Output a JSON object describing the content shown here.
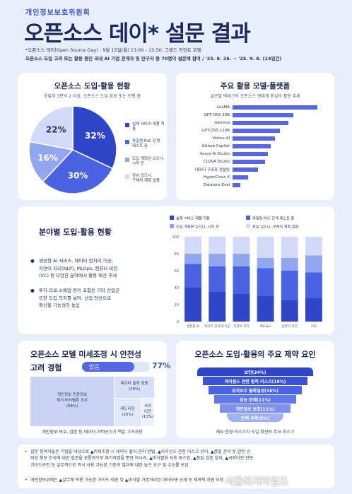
{
  "header": {
    "org": "개인정보보호위원회",
    "title": "오픈소스 데이* 설문 결과",
    "note": "*오픈소스 데이(Open Source Day) : 9월 15일(월) 13:00 - 15:30, 그랜드 하얏트 호텔",
    "summary": "오픈소스 도입 고려 또는 활용 중인 국내 AI 기업 관계자 및 연구자 등 70명이 설문에 참여 / '25. 8. 26. ~ '25. 9. 8. (14일간)"
  },
  "adoption": {
    "title": "오픈소스 도입·활용 현황",
    "subtitle": "응답자 3분의 2 이상, 오픈소스 도입 완료 또는 진행 중",
    "chart_data": {
      "type": "pie",
      "slices": [
        {
          "label": "실제 서비스·제품 적용",
          "value": 32,
          "color": "#2f46c9"
        },
        {
          "label": "파일럿·PoC 단계 테스트 중",
          "value": 30,
          "color": "#4a63e3"
        },
        {
          "label": "도입 계획은 있으나, 시작 전",
          "value": 16,
          "color": "#93a6f0"
        },
        {
          "label": "관심 있으나, 구체적 계획 없음",
          "value": 22,
          "color": "#d2daf8"
        }
      ],
      "value_labels": [
        "32%",
        "30%",
        "16%",
        "22%"
      ]
    },
    "legend": [
      {
        "line1": "실제 서비스·제품 적용",
        "line2": ""
      },
      {
        "line1": "파일럿·PoC 단계",
        "line2": "테스트 중"
      },
      {
        "line1": "도입 계획은 있으나,",
        "line2": "시작 전"
      },
      {
        "line1": "관심 있으나,",
        "line2": "구체적 계획 없음"
      }
    ]
  },
  "models": {
    "title": "주요 활용 모델·플랫폼",
    "subtitle": "글로벌 빅테크의 오픈소스 생태계 중심의 활용 추세",
    "chart_data": {
      "type": "bar",
      "orientation": "horizontal",
      "categories": [
        "LLaMA",
        "GPT-OSS 20B",
        "Gemma",
        "GPT-OSS 120B",
        "Vertex AI",
        "Github Copilot",
        "Azure AI Studio",
        "CLOVA Studio",
        "데이터 구조화 컨설팅",
        "HyperClova X",
        "Dataorro Eval"
      ],
      "values": [
        100,
        72,
        66,
        56,
        50,
        45,
        42,
        38,
        30,
        18,
        9
      ],
      "color": "#5566e6"
    }
  },
  "sector": {
    "title": "분야별 도입·활용 현황",
    "bullets": [
      {
        "lines": [
          "생성형 AI 서비스, 데이터 전처리·가공,",
          "자연어 처리(NLP), MLOps, 컴퓨터 비전",
          "(VC) 등 다양한 분야에서 활용 확산 추세"
        ]
      },
      {
        "lines": [
          "투자·의료·소매업 등이 포함된 기타 산업군",
          "또한 도입 의지를 보여, 산업 전반으로",
          "확산될 가능성이 높음"
        ]
      }
    ],
    "chart_data": {
      "type": "bar",
      "stacked": true,
      "categories": [
        "생성형 AI",
        "데이터 전처리/가공",
        "자연어 처리",
        "MLOps",
        "컴퓨터 비전",
        "기타"
      ],
      "series": [
        {
          "name": "실제 서비스·제품 적용",
          "values": [
            40,
            35,
            33,
            30,
            25,
            28
          ],
          "color": "#2f46c9"
        },
        {
          "name": "파일럿·PoC 단계 테스트 중",
          "values": [
            28,
            30,
            32,
            33,
            35,
            30
          ],
          "color": "#4a63e3"
        },
        {
          "name": "도입 계획은 있으나, 시작 전",
          "values": [
            12,
            15,
            15,
            12,
            15,
            20
          ],
          "color": "#93a6f0"
        },
        {
          "name": "관심 있으나, 구체적 계획 없음",
          "values": [
            20,
            20,
            20,
            25,
            25,
            22
          ],
          "color": "#d2daf8"
        }
      ],
      "ylim": [
        0,
        100
      ],
      "yticks": [
        0,
        20,
        40,
        60,
        80,
        100
      ],
      "legend_position": "top"
    }
  },
  "finetune": {
    "title": "오픈소스 모델 미세조정 시 안전성",
    "label": "고려 경험",
    "pill_text": "있음",
    "pct_text": "77%",
    "pct_value": 0.77,
    "treemap": [
      {
        "line1": "개인정보 민감정보",
        "line2": "제거·비식별화 조치",
        "line3": "(68%)"
      },
      {
        "line1": "데이터 출처 검증",
        "line2": "(19%)",
        "line3": ""
      },
      {
        "line1": "레드티밍",
        "line2": "(16%)",
        "line3": ""
      },
      {
        "line1": "국외",
        "line2": "이전",
        "line3": "(13%)"
      }
    ],
    "footer": "개인정보 보호, 검증 등 데이터 거버넌스가 핵심 고려사항"
  },
  "constraints": {
    "title": "오픈소스 도입·활용의 주요 제약 요인",
    "items": [
      {
        "label": "보안(24%)",
        "color": "#2f46c9"
      },
      {
        "label": "라이센스 관련 법적 리스크(19%)",
        "color": "#3a53d4"
      },
      {
        "label": "유지보수 불확실성(16%)",
        "color": "#4a63e3"
      },
      {
        "label": "성능 문제(11%)",
        "color": "#6078ea"
      },
      {
        "label": "개인정보 보호(11%)",
        "color": "#7d90ee"
      },
      {
        "label": "인력 부족(9%)",
        "color": "#9fb0f3"
      }
    ],
    "footer": "제도·운영 리스크가 도입 확산의 주요 리스크"
  },
  "notes": [
    {
      "lines": [
        "설문 참여자들은 기업을 대상으로 ▲미세조정 시 데이터 출처 관리 방법, ▲라이선스 관련 리스크 관리, ▲품질 관리 등 안전·신",
        "뢰성 확보 조치에 대한 질문을 공통적으로 제기하였을 뿐만 아니라, ▲비식별화 자동 마스킹, ▲품질 검증 절차, ▲국외이전 관련",
        "가이드라인 등 실무적으로 즉시 사용 가능한 기준과 절차에 대한 높은 요구 및 수요를 보임"
      ]
    },
    {
      "lines": [
        "개인정보위에는 ▲실무에 적용 가능한 가이드 제공 및 ▲비식별 가명처리된 데이터셋 공개 등 체계적 지원 요청"
      ]
    }
  ],
  "watermark": "서울복지타임즈"
}
